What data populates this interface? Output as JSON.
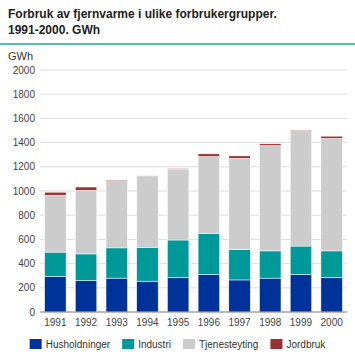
{
  "chart_data": {
    "type": "bar",
    "stacked": true,
    "title": "Forbruk av fjernvarme i ulike forbrukergrupper.",
    "subtitle": "1991-2000. GWh",
    "ylabel": "GWh",
    "categories": [
      "1991",
      "1992",
      "1993",
      "1994",
      "1995",
      "1996",
      "1997",
      "1998",
      "1999",
      "2000"
    ],
    "series": [
      {
        "name": "Husholdninger",
        "color": "#003399",
        "values": [
          295,
          260,
          280,
          255,
          285,
          310,
          265,
          280,
          310,
          285
        ]
      },
      {
        "name": "Industri",
        "color": "#009999",
        "values": [
          200,
          220,
          250,
          280,
          310,
          340,
          250,
          225,
          235,
          220
        ]
      },
      {
        "name": "Tjenesteyting",
        "color": "#cccccc",
        "values": [
          470,
          525,
          555,
          590,
          585,
          635,
          755,
          870,
          955,
          930
        ]
      },
      {
        "name": "Jordbruk",
        "color": "#993333",
        "values": [
          25,
          28,
          5,
          5,
          5,
          22,
          20,
          15,
          5,
          18
        ]
      }
    ],
    "ylim": [
      0,
      2000
    ],
    "yticks": [
      0,
      200,
      400,
      600,
      800,
      1000,
      1200,
      1400,
      1600,
      1800,
      2000
    ],
    "grid": true,
    "legend": "bottom"
  }
}
